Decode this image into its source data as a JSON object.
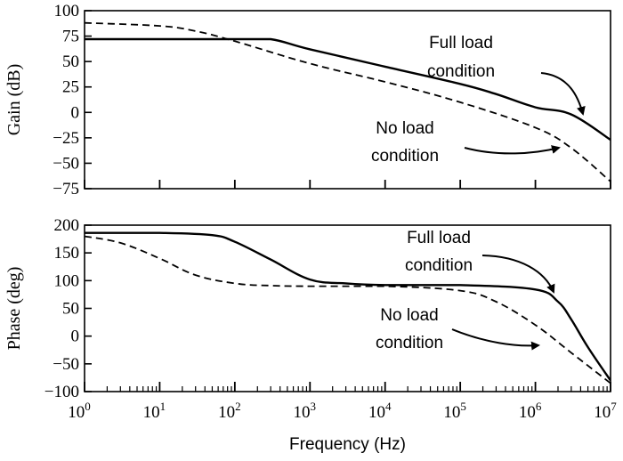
{
  "chart_data": [
    {
      "type": "line",
      "ylabel": "Gain (dB)",
      "xscale": "log",
      "xlim": [
        1,
        10000000
      ],
      "ylim": [
        -75,
        100
      ],
      "yticks": [
        "100",
        "75",
        "50",
        "25",
        "0",
        "−25",
        "−50",
        "−75"
      ],
      "ytick_values": [
        100,
        75,
        50,
        25,
        0,
        -25,
        -50,
        -75
      ],
      "grid": false,
      "series": [
        {
          "name": "Full load condition",
          "style": "solid",
          "x": [
            1,
            100,
            300,
            1000,
            10000,
            100000,
            300000,
            1000000,
            3000000,
            10000000
          ],
          "y": [
            72,
            72,
            72,
            62,
            45,
            28,
            18,
            5,
            -2,
            -27
          ]
        },
        {
          "name": "No load condition",
          "style": "dashed",
          "x": [
            1,
            10,
            30,
            100,
            1000,
            10000,
            100000,
            1000000,
            3000000,
            10000000
          ],
          "y": [
            88,
            85,
            80,
            70,
            48,
            30,
            10,
            -15,
            -35,
            -68
          ]
        }
      ],
      "annotations": [
        {
          "lines": [
            "Full load",
            "condition"
          ],
          "points_to": "Full load condition"
        },
        {
          "lines": [
            "No load",
            "condition"
          ],
          "points_to": "No load condition"
        }
      ]
    },
    {
      "type": "line",
      "ylabel": "Phase (deg)",
      "xlabel": "Frequency (Hz)",
      "xscale": "log",
      "xlim": [
        1,
        10000000
      ],
      "ylim": [
        -100,
        200
      ],
      "yticks": [
        "200",
        "150",
        "100",
        "50",
        "0",
        "−50",
        "−100"
      ],
      "ytick_values": [
        200,
        150,
        100,
        50,
        0,
        -50,
        -100
      ],
      "xtick_exponents": [
        "0",
        "1",
        "2",
        "3",
        "4",
        "5",
        "6",
        "7"
      ],
      "grid": false,
      "series": [
        {
          "name": "Full load condition",
          "style": "solid",
          "x": [
            1,
            10,
            50,
            100,
            300,
            1000,
            3000,
            10000,
            100000,
            1000000,
            2000000,
            3000000,
            5000000,
            10000000
          ],
          "y": [
            186,
            186,
            182,
            170,
            138,
            102,
            95,
            92,
            92,
            84,
            62,
            30,
            -20,
            -80
          ]
        },
        {
          "name": "No load condition",
          "style": "dashed",
          "x": [
            1,
            3,
            10,
            30,
            100,
            300,
            1000,
            10000,
            100000,
            300000,
            1000000,
            3000000,
            10000000
          ],
          "y": [
            180,
            168,
            140,
            110,
            95,
            91,
            90,
            90,
            82,
            62,
            20,
            -30,
            -85
          ]
        }
      ],
      "annotations": [
        {
          "lines": [
            "Full load",
            "condition"
          ],
          "points_to": "Full load condition"
        },
        {
          "lines": [
            "No load",
            "condition"
          ],
          "points_to": "No load condition"
        }
      ]
    }
  ]
}
